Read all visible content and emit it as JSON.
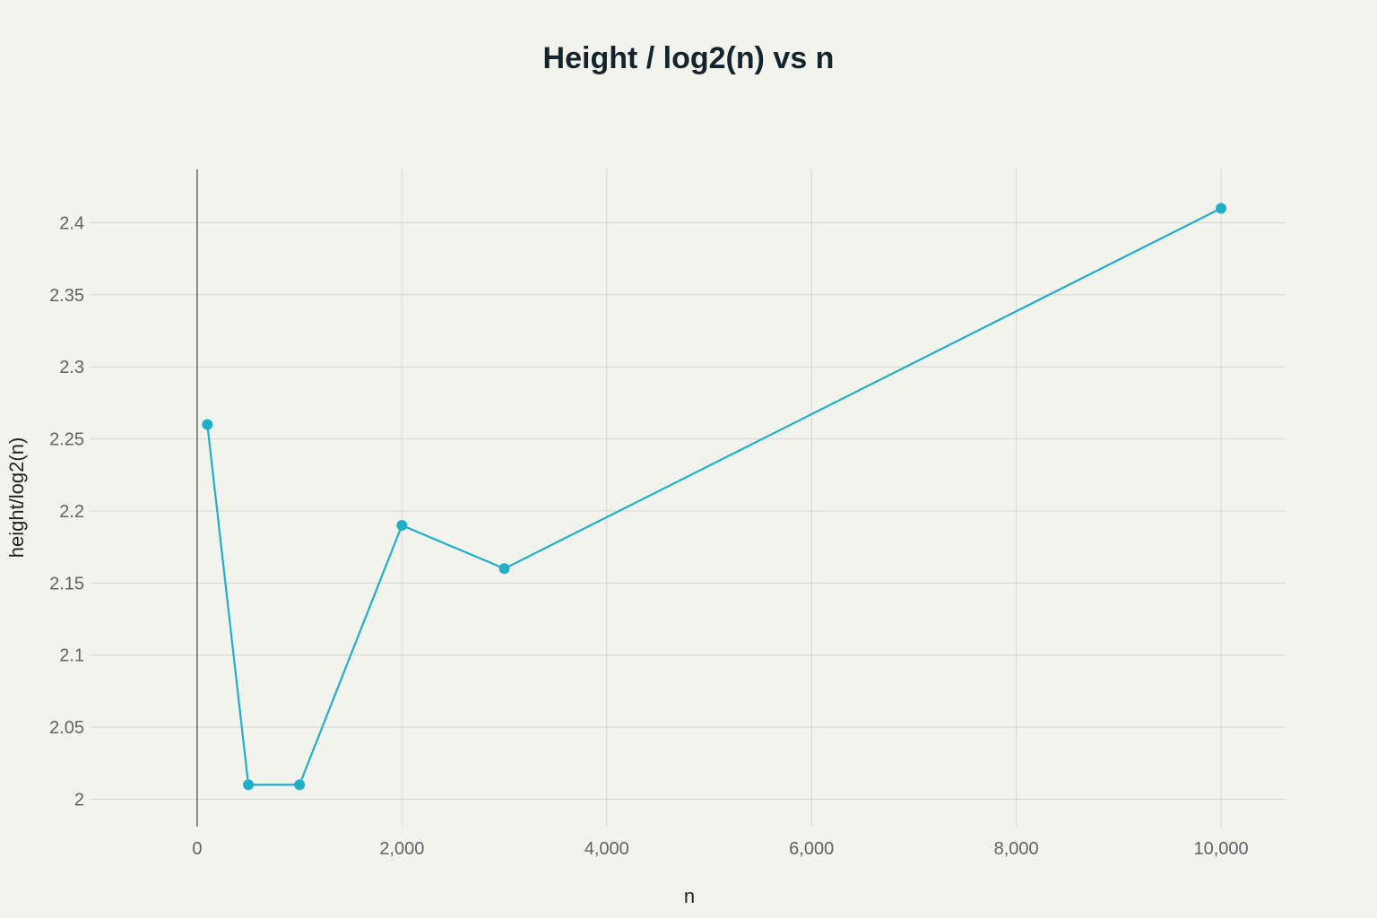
{
  "chart_data": {
    "type": "line",
    "title": "Height / log2(n) vs n",
    "xlabel": "n",
    "ylabel": "height/log2(n)",
    "xlim": [
      -1050,
      10630
    ],
    "ylim": [
      1.981,
      2.437
    ],
    "x_ticks": [
      0,
      2000,
      4000,
      6000,
      8000,
      10000
    ],
    "x_tick_labels": [
      "0",
      "2,000",
      "4,000",
      "6,000",
      "8,000",
      "10,000"
    ],
    "y_ticks": [
      2,
      2.05,
      2.1,
      2.15,
      2.2,
      2.25,
      2.3,
      2.35,
      2.4
    ],
    "y_tick_labels": [
      "2",
      "2.05",
      "2.1",
      "2.15",
      "2.2",
      "2.25",
      "2.3",
      "2.35",
      "2.4"
    ],
    "grid": true,
    "legend": "none",
    "series": [
      {
        "color": "#1fb0c8",
        "x": [
          100,
          500,
          1000,
          2000,
          3000,
          10000
        ],
        "y": [
          2.26,
          2.01,
          2.01,
          2.19,
          2.16,
          2.41
        ]
      }
    ]
  }
}
